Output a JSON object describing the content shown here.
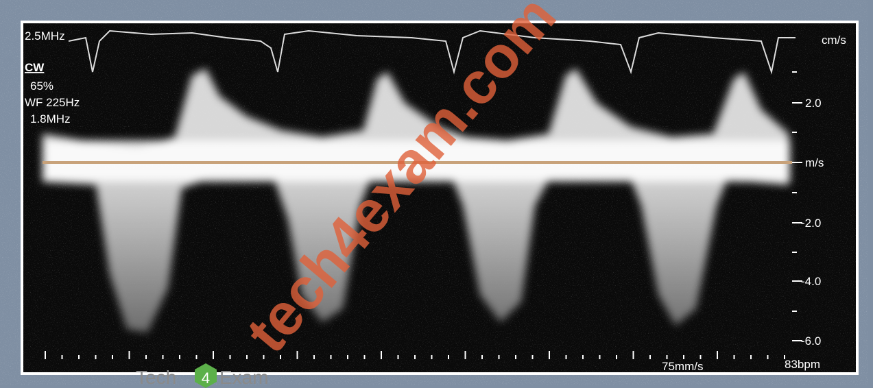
{
  "settings": {
    "probe": "2.5MHz",
    "mode": "CW",
    "gain": "65%",
    "wall_filter": "WF 225Hz",
    "frequency": "1.8MHz"
  },
  "scale": {
    "unit_top": "cm/s",
    "ticks": [
      "2.0",
      "m/s",
      "-2.0",
      "-4.0",
      "-6.0"
    ]
  },
  "footer": {
    "sweep": "75mm/s",
    "heart_rate": "83bpm"
  },
  "watermark": {
    "text": "tech4exam.com",
    "logo_left": "Tech",
    "logo_mid": "4",
    "logo_right": "Exam"
  }
}
